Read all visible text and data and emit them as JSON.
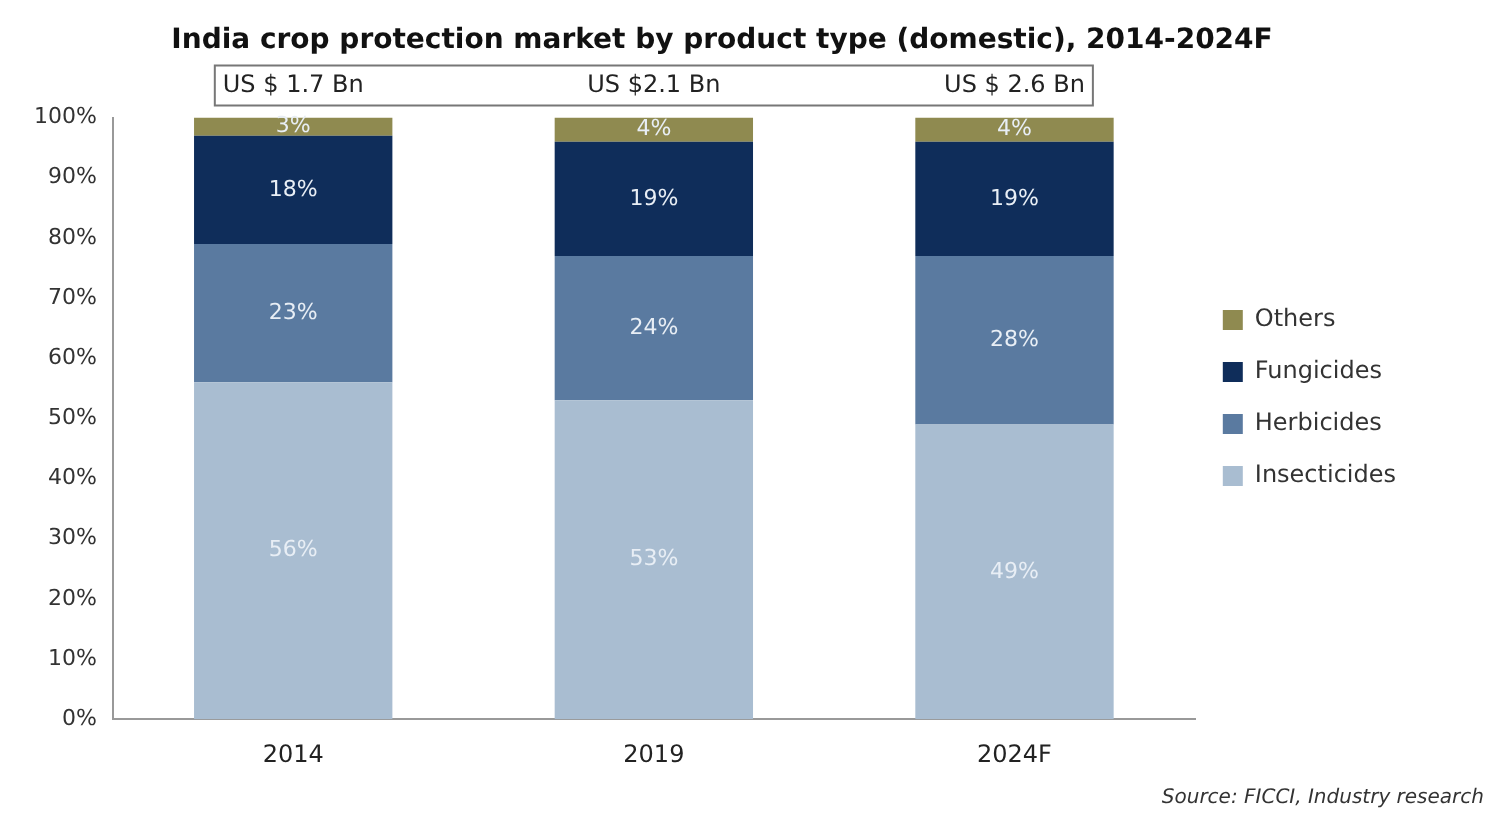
{
  "chart_data": {
    "type": "bar",
    "title": "India crop protection market by product type (domestic), 2014-2024F",
    "categories": [
      "2014",
      "2019",
      "2024F"
    ],
    "stacked": true,
    "series": [
      {
        "name": "Insecticides",
        "color": "#a9bdd1",
        "values": [
          56,
          53,
          49
        ],
        "value_labels": [
          "56%",
          "53%",
          "49%"
        ]
      },
      {
        "name": "Herbicides",
        "color": "#5a7aa0",
        "values": [
          23,
          24,
          28
        ],
        "value_labels": [
          "23%",
          "24%",
          "28%"
        ]
      },
      {
        "name": "Fungicides",
        "color": "#0f2d5a",
        "values": [
          18,
          19,
          19
        ],
        "value_labels": [
          "18%",
          "19%",
          "19%"
        ]
      },
      {
        "name": "Others",
        "color": "#8f8a50",
        "values": [
          3,
          4,
          4
        ],
        "value_labels": [
          "3%",
          "4%",
          "4%"
        ]
      }
    ],
    "totals": [
      "US $ 1.7 Bn",
      "US $2.1 Bn",
      "US $ 2.6 Bn"
    ],
    "ylim": [
      0,
      100
    ],
    "yticks": [
      {
        "value": 0,
        "label": "0%"
      },
      {
        "value": 10,
        "label": "10%"
      },
      {
        "value": 20,
        "label": "20%"
      },
      {
        "value": 30,
        "label": "30%"
      },
      {
        "value": 40,
        "label": "40%"
      },
      {
        "value": 50,
        "label": "50%"
      },
      {
        "value": 60,
        "label": "60%"
      },
      {
        "value": 70,
        "label": "70%"
      },
      {
        "value": 80,
        "label": "80%"
      },
      {
        "value": 90,
        "label": "90%"
      },
      {
        "value": 100,
        "label": "100%"
      }
    ],
    "grid": false,
    "legend": "right",
    "annotations": [
      "Source: FICCI, Industry research"
    ]
  }
}
